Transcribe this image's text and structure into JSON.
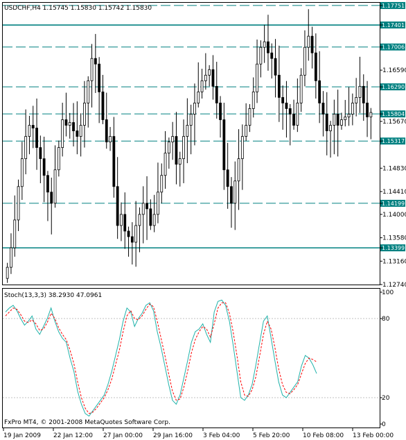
{
  "header": {
    "symbol_info": "USDCHF,H4  1.15745 1.15830 1.15742 1.15830"
  },
  "indicator": {
    "title": "Stoch(13,3,3) 38.2930 47.0961"
  },
  "footer": {
    "copyright": "FxPro MT4, © 2001-2008 MetaQuotes Software Corp."
  },
  "colors": {
    "background": "#ffffff",
    "grid": "#000000",
    "level_line": "#008080",
    "level_box": "#008080",
    "stoch_main": "#20b2aa",
    "stoch_signal": "#ff0000",
    "stoch_levels": "#c0c0c0"
  },
  "chart_data": [
    {
      "type": "candlestick",
      "title": "USDCHF,H4",
      "ylim": [
        1.1274,
        1.178
      ],
      "y_ticks": [
        "1.17751",
        "1.17401",
        "1.17006",
        "1.16590",
        "1.16290",
        "1.15804",
        "1.15670",
        "1.15317",
        "1.14830",
        "1.14410",
        "1.14199",
        "1.14000",
        "1.13580",
        "1.13399",
        "1.13160",
        "1.12740"
      ],
      "x_ticks": [
        "19 Jan 2009",
        "22 Jan 12:00",
        "27 Jan 00:00",
        "29 Jan 16:00",
        "3 Feb 04:00",
        "5 Feb 20:00",
        "10 Feb 08:00",
        "13 Feb 00:00"
      ],
      "levels": [
        {
          "value": "1.17751",
          "style": "dashed"
        },
        {
          "value": "1.17401",
          "style": "solid"
        },
        {
          "value": "1.17006",
          "style": "dashed"
        },
        {
          "value": "1.16290",
          "style": "dashed"
        },
        {
          "value": "1.15804",
          "style": "dashed"
        },
        {
          "value": "1.15317",
          "style": "dashed"
        },
        {
          "value": "1.14199",
          "style": "dashed"
        },
        {
          "value": "1.13399",
          "style": "solid"
        }
      ],
      "last_price": 1.1583,
      "series_close": [
        1.1305,
        1.134,
        1.139,
        1.145,
        1.15,
        1.154,
        1.156,
        1.1555,
        1.152,
        1.15,
        1.147,
        1.144,
        1.142,
        1.148,
        1.152,
        1.157,
        1.156,
        1.1565,
        1.155,
        1.154,
        1.156,
        1.16,
        1.164,
        1.168,
        1.167,
        1.162,
        1.157,
        1.153,
        1.154,
        1.145,
        1.138,
        1.14,
        1.137,
        1.136,
        1.135,
        1.138,
        1.14,
        1.142,
        1.141,
        1.138,
        1.14,
        1.144,
        1.147,
        1.151,
        1.153,
        1.154,
        1.149,
        1.15,
        1.154,
        1.156,
        1.158,
        1.16,
        1.162,
        1.164,
        1.165,
        1.166,
        1.163,
        1.16,
        1.157,
        1.148,
        1.145,
        1.142,
        1.146,
        1.15,
        1.154,
        1.156,
        1.159,
        1.162,
        1.167,
        1.17,
        1.171,
        1.169,
        1.168,
        1.165,
        1.161,
        1.16,
        1.159,
        1.158,
        1.156,
        1.16,
        1.165,
        1.17,
        1.172,
        1.169,
        1.164,
        1.16,
        1.158,
        1.155,
        1.156,
        1.158,
        1.156,
        1.157,
        1.1575,
        1.158,
        1.16,
        1.161,
        1.163,
        1.16,
        1.1575,
        1.1583
      ]
    },
    {
      "type": "line",
      "title": "Stoch(13,3,3)",
      "ylim": [
        0,
        100
      ],
      "y_ticks": [
        "100",
        "80",
        "20",
        "0"
      ],
      "levels": [
        80,
        20
      ],
      "series": [
        {
          "name": "main",
          "values": [
            85,
            88,
            90,
            86,
            80,
            75,
            78,
            82,
            72,
            68,
            74,
            80,
            88,
            78,
            70,
            65,
            62,
            50,
            40,
            25,
            15,
            8,
            6,
            10,
            14,
            18,
            22,
            30,
            40,
            52,
            64,
            78,
            88,
            85,
            74,
            80,
            84,
            90,
            92,
            86,
            70,
            58,
            44,
            30,
            18,
            15,
            22,
            35,
            48,
            62,
            70,
            72,
            76,
            68,
            62,
            85,
            93,
            94,
            90,
            78,
            60,
            40,
            20,
            18,
            22,
            30,
            45,
            62,
            78,
            82,
            65,
            48,
            32,
            22,
            20,
            24,
            28,
            32,
            44,
            52,
            50,
            45,
            38.293
          ]
        },
        {
          "name": "signal",
          "values": [
            82,
            85,
            88,
            87,
            83,
            78,
            77,
            79,
            76,
            71,
            72,
            77,
            84,
            80,
            73,
            68,
            64,
            56,
            46,
            32,
            20,
            12,
            8,
            9,
            12,
            16,
            20,
            26,
            34,
            45,
            56,
            70,
            82,
            86,
            80,
            79,
            82,
            87,
            91,
            89,
            78,
            65,
            52,
            38,
            25,
            18,
            19,
            28,
            40,
            54,
            64,
            70,
            74,
            72,
            66,
            76,
            88,
            92,
            92,
            84,
            70,
            52,
            32,
            22,
            21,
            26,
            36,
            52,
            68,
            78,
            72,
            58,
            42,
            30,
            24,
            23,
            26,
            30,
            38,
            46,
            50,
            49,
            47.0961
          ]
        }
      ]
    }
  ]
}
